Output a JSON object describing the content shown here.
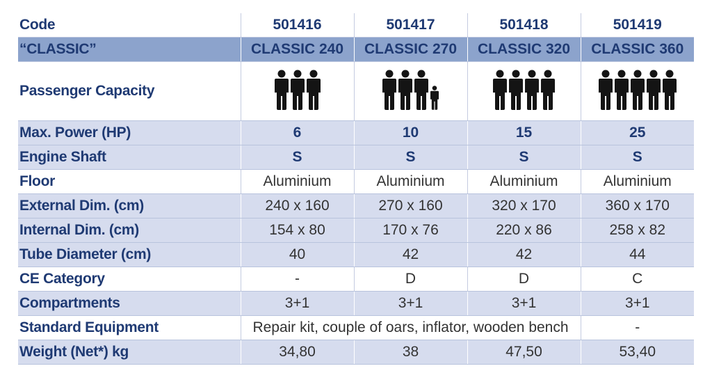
{
  "header": {
    "label": "Code",
    "codes": [
      "501416",
      "501417",
      "501418",
      "501419"
    ]
  },
  "model_row": {
    "label": "“CLASSIC”",
    "models": [
      "CLASSIC 240",
      "CLASSIC 270",
      "CLASSIC 320",
      "CLASSIC 360"
    ]
  },
  "capacity": {
    "label": "Passenger Capacity",
    "adults": [
      3,
      3,
      4,
      5
    ],
    "children": [
      0,
      1,
      0,
      0
    ]
  },
  "rows": [
    {
      "label": "Max. Power (HP)",
      "values": [
        "6",
        "10",
        "15",
        "25"
      ]
    },
    {
      "label": "Engine Shaft",
      "values": [
        "S",
        "S",
        "S",
        "S"
      ]
    },
    {
      "label": "Floor",
      "values": [
        "Aluminium",
        "Aluminium",
        "Aluminium",
        "Aluminium"
      ]
    },
    {
      "label": "External Dim. (cm)",
      "values": [
        "240 x 160",
        "270 x 160",
        "320 x 170",
        "360 x 170"
      ]
    },
    {
      "label": "Internal Dim. (cm)",
      "values": [
        "154 x 80",
        "170 x 76",
        "220 x 86",
        "258 x 82"
      ]
    },
    {
      "label": "Tube Diameter (cm)",
      "values": [
        "40",
        "42",
        "42",
        "44"
      ]
    },
    {
      "label": "CE Category",
      "values": [
        "-",
        "D",
        "D",
        "C"
      ]
    },
    {
      "label": "Compartments",
      "values": [
        "3+1",
        "3+1",
        "3+1",
        "3+1"
      ]
    }
  ],
  "equipment": {
    "label": "Standard Equipment",
    "shared": "Repair kit, couple of oars, inflator, wooden bench",
    "last": "-"
  },
  "weight": {
    "label": "Weight (Net*) kg",
    "values": [
      "34,80",
      "38",
      "47,50",
      "53,40"
    ]
  },
  "colors": {
    "label_text": "#1f3a73",
    "shade": "#d6dcee",
    "dark": "#8ca3cc",
    "figure": "#141414"
  }
}
